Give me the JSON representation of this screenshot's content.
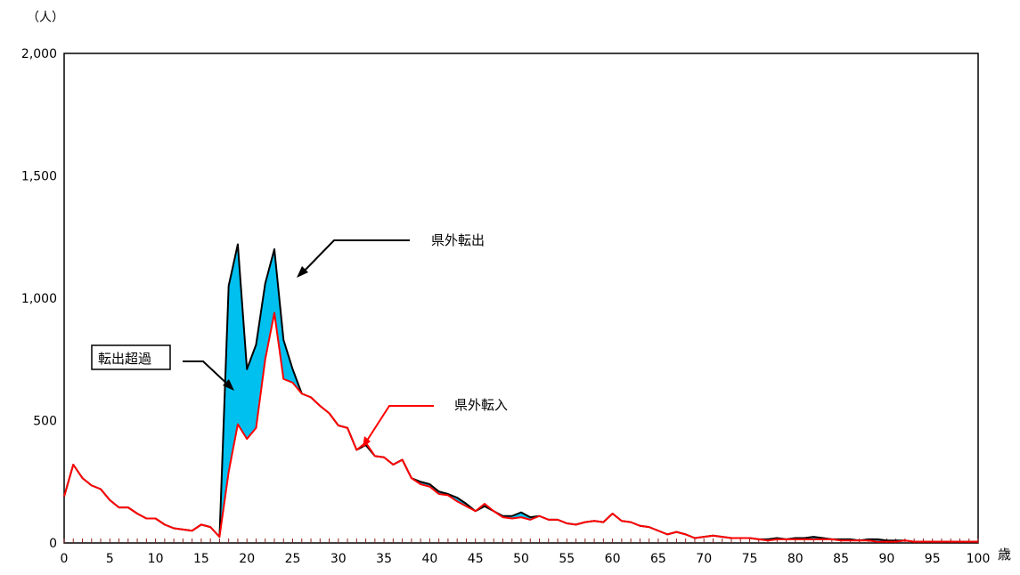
{
  "chart_data": {
    "type": "area",
    "unit_label": "（人）",
    "x_unit_label": "歳",
    "xlim": [
      0,
      100
    ],
    "ylim": [
      0,
      2000
    ],
    "x_ticks": [
      0,
      5,
      10,
      15,
      20,
      25,
      30,
      35,
      40,
      45,
      50,
      55,
      60,
      65,
      70,
      75,
      80,
      85,
      90,
      95,
      100
    ],
    "x_tick_labels": [
      "0",
      "5",
      "10",
      "15",
      "20",
      "25",
      "30",
      "35",
      "40",
      "45",
      "50",
      "55",
      "60",
      "65",
      "70",
      "75",
      "80",
      "85",
      "90",
      "95",
      "100"
    ],
    "y_ticks": [
      0,
      500,
      1000,
      1500,
      2000
    ],
    "y_tick_labels": [
      "0",
      "500",
      "1,000",
      "1,500",
      "2,000"
    ],
    "grid": false,
    "colors": {
      "out": "#000000",
      "in": "#ff0000",
      "excess_fill": "#00c0f0"
    },
    "series": [
      {
        "name": "県外転出",
        "values": [
          190,
          320,
          265,
          235,
          220,
          175,
          145,
          145,
          120,
          100,
          100,
          75,
          60,
          55,
          50,
          75,
          65,
          25,
          1050,
          1220,
          710,
          810,
          1060,
          1200,
          830,
          710,
          610,
          595,
          560,
          530,
          480,
          470,
          380,
          400,
          355,
          350,
          320,
          340,
          265,
          250,
          240,
          210,
          200,
          185,
          160,
          130,
          150,
          130,
          110,
          110,
          125,
          105,
          110,
          95,
          95,
          80,
          75,
          85,
          90,
          85,
          120,
          90,
          85,
          70,
          65,
          50,
          35,
          45,
          35,
          20,
          25,
          30,
          25,
          20,
          20,
          20,
          15,
          15,
          20,
          15,
          20,
          20,
          25,
          20,
          15,
          15,
          15,
          10,
          15,
          15,
          10,
          10,
          10,
          5,
          5,
          5,
          5,
          5,
          5,
          5,
          5
        ]
      },
      {
        "name": "県外転入",
        "values": [
          190,
          320,
          265,
          235,
          220,
          175,
          145,
          145,
          120,
          100,
          100,
          75,
          60,
          55,
          50,
          75,
          65,
          25,
          290,
          485,
          425,
          470,
          750,
          940,
          670,
          655,
          610,
          595,
          560,
          530,
          480,
          470,
          380,
          410,
          355,
          350,
          320,
          340,
          265,
          240,
          230,
          200,
          195,
          170,
          150,
          130,
          160,
          130,
          105,
          100,
          105,
          95,
          110,
          95,
          95,
          80,
          75,
          85,
          90,
          85,
          120,
          90,
          85,
          70,
          65,
          50,
          35,
          45,
          35,
          20,
          25,
          30,
          25,
          20,
          20,
          20,
          15,
          10,
          15,
          15,
          15,
          15,
          15,
          15,
          15,
          10,
          10,
          10,
          10,
          5,
          5,
          5,
          10,
          5,
          5,
          5,
          5,
          5,
          5,
          5,
          5
        ]
      }
    ],
    "annotations": {
      "out_label": "県外転出",
      "in_label": "県外転入",
      "excess_label": "転出超過"
    }
  }
}
